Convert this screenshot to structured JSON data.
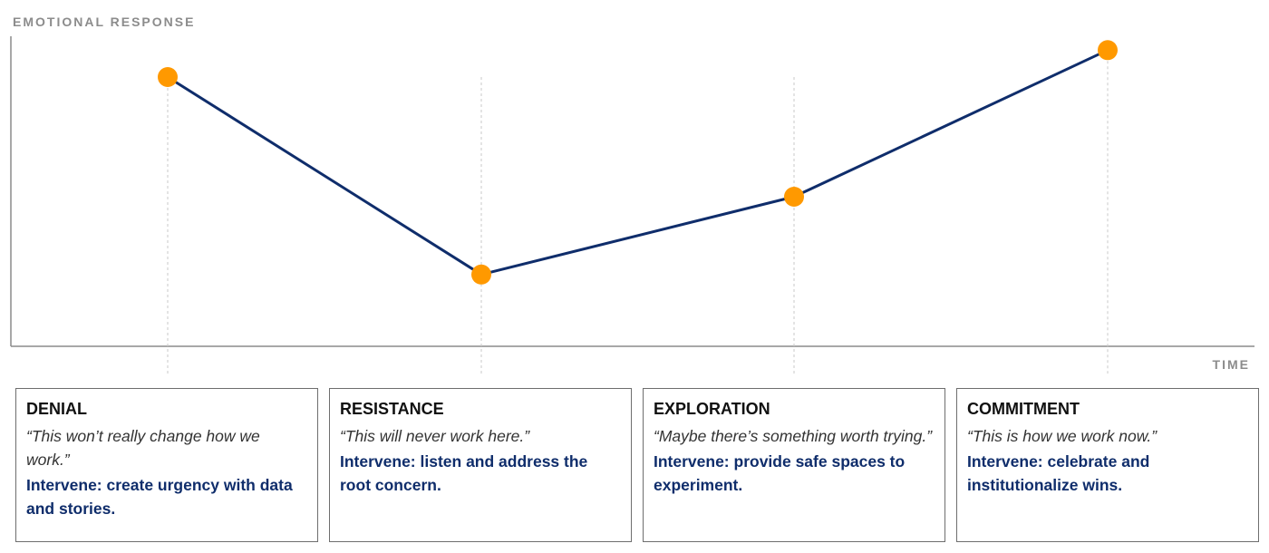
{
  "axes": {
    "y_label": "EMOTIONAL RESPONSE",
    "x_label": "TIME"
  },
  "colors": {
    "line": "#0f2d6b",
    "marker": "#ff9900",
    "axis": "#8c8c8c",
    "guide": "#c8c8c8",
    "action_text": "#0f2d6b"
  },
  "stages": [
    {
      "name": "DENIAL",
      "quote": "“This won’t really change how we work.”",
      "action": "Intervene: create urgency with data and stories.",
      "level": 0.9
    },
    {
      "name": "RESISTANCE",
      "quote": "“This will never work here.”",
      "action": "Intervene: listen and address the root concern.",
      "level": 0.24
    },
    {
      "name": "EXPLORATION",
      "quote": "“Maybe there’s something worth trying.”",
      "action": "Intervene: provide safe spaces to experiment.",
      "level": 0.5
    },
    {
      "name": "COMMITMENT",
      "quote": "“This is how we work now.”",
      "action": "Intervene: celebrate and institutionalize wins.",
      "level": 0.99
    }
  ]
}
